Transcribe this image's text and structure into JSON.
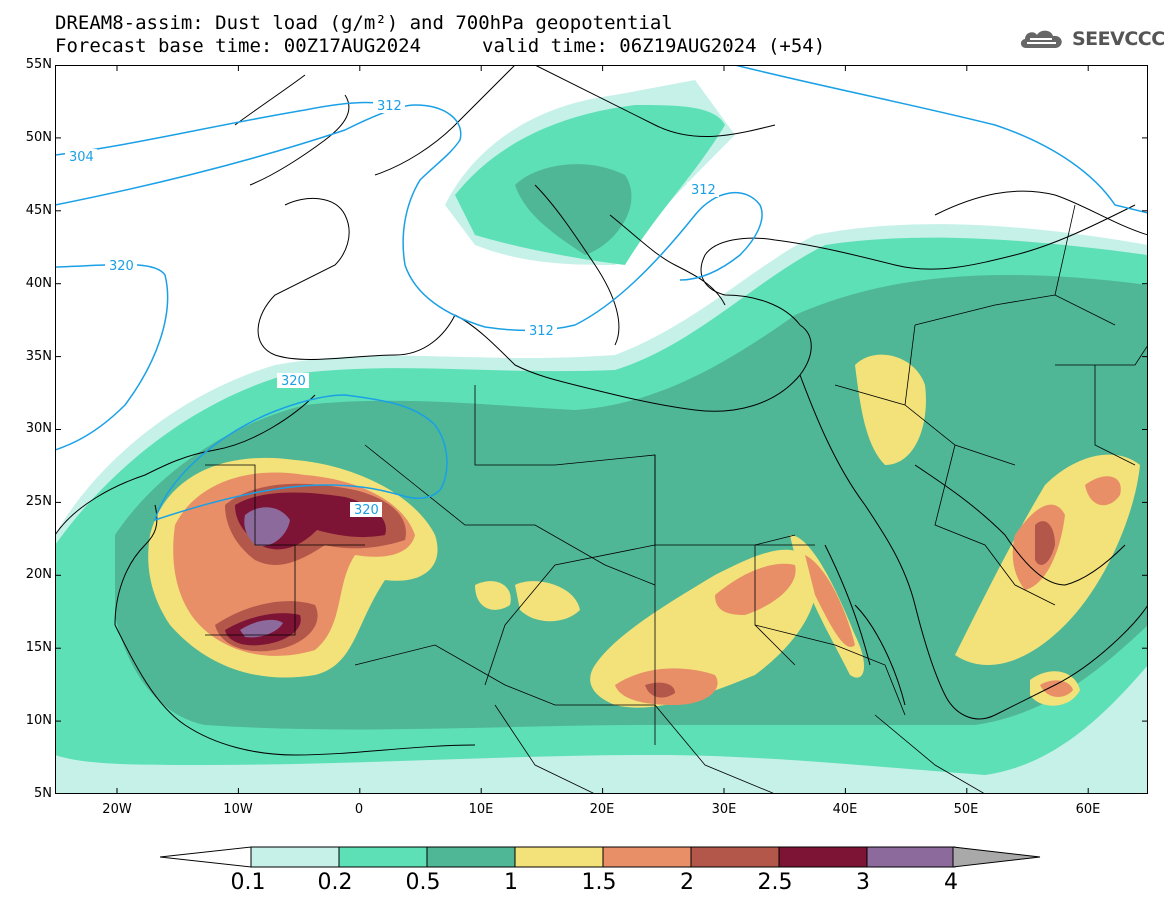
{
  "title": {
    "line1": "DREAM8-assim: Dust load (g/m²) and 700hPa geopotential",
    "line2": "Forecast base time: 00Z17AUG2024",
    "valid": "valid time: 06Z19AUG2024 (+54)"
  },
  "logo": {
    "text": "SEEVCCC",
    "icon": "cloud-icon"
  },
  "axes": {
    "lat_labels": [
      "55N",
      "50N",
      "45N",
      "40N",
      "35N",
      "30N",
      "25N",
      "20N",
      "15N",
      "10N",
      "5N"
    ],
    "lon_labels": [
      "20W",
      "10W",
      "0",
      "10E",
      "20E",
      "30E",
      "40E",
      "50E",
      "60E"
    ]
  },
  "contour_labels": [
    "304",
    "312",
    "312",
    "312",
    "320",
    "320",
    "320"
  ],
  "colorbar": {
    "labels": [
      "0.1",
      "0.2",
      "0.5",
      "1",
      "1.5",
      "2",
      "2.5",
      "3",
      "4"
    ],
    "colors": [
      "#c6f1e8",
      "#5ee0b6",
      "#4fb795",
      "#f3e27a",
      "#e88f68",
      "#b2574a",
      "#7e1435",
      "#8c6a9b",
      "#a9a9a9"
    ]
  },
  "colors": {
    "contour_line": "#1aa0e6",
    "land_border": "#000000"
  }
}
